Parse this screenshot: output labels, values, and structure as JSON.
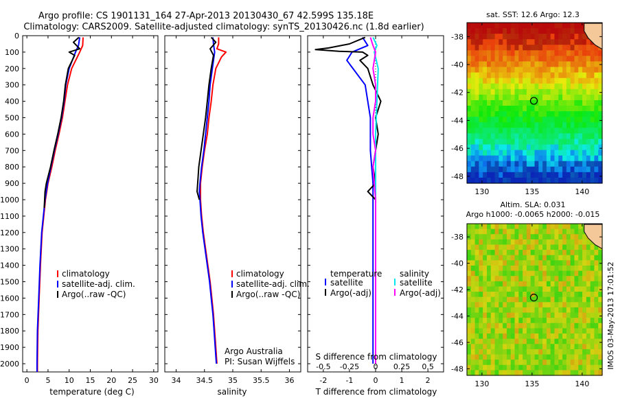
{
  "header": {
    "line1": "Argo profile: CS 1901131_164 27-Apr-2013 20130430_67 42.599S 135.18E",
    "line2": "Climatology: CARS2009. Satellite-adjusted climatology: synTS_20130426.nc (1.8d earlier)"
  },
  "colors": {
    "climatology": "#ff0000",
    "satellite": "#0000ff",
    "argo": "#000000",
    "sal_satellite": "#00e5ee",
    "sal_argo": "#ff00ff"
  },
  "chart_data": [
    {
      "type": "line",
      "xlabel": "temperature (deg C)",
      "ylabel": "",
      "xlim": [
        -1,
        31
      ],
      "ylim": [
        2050,
        0
      ],
      "xticks": [
        0,
        5,
        10,
        15,
        20,
        25,
        30
      ],
      "yticks": [
        0,
        100,
        200,
        300,
        400,
        500,
        600,
        700,
        800,
        900,
        1000,
        1100,
        1200,
        1300,
        1400,
        1500,
        1600,
        1700,
        1800,
        1900,
        2000
      ],
      "legend": [
        "climatology",
        "satellite-adj. clim.",
        "Argo(..raw -QC)"
      ],
      "series": [
        {
          "name": "climatology",
          "color": "climatology",
          "y": [
            10,
            60,
            100,
            200,
            300,
            400,
            500,
            600,
            700,
            800,
            900,
            1000,
            1200,
            1400,
            1600,
            1800,
            2000,
            2050
          ],
          "x": [
            13.3,
            13.2,
            12.5,
            10.6,
            9.6,
            9.0,
            8.4,
            7.6,
            6.7,
            5.9,
            5.0,
            4.4,
            3.6,
            3.2,
            2.9,
            2.6,
            2.5,
            2.5
          ]
        },
        {
          "name": "satellite-adj. clim.",
          "color": "satellite",
          "y": [
            10,
            60,
            100,
            200,
            300,
            400,
            500,
            600,
            700,
            800,
            900,
            1000,
            1200,
            1400,
            1600,
            1800,
            2000,
            2050
          ],
          "x": [
            12.5,
            12.2,
            11.5,
            10.0,
            9.2,
            8.8,
            8.2,
            7.4,
            6.5,
            5.7,
            4.9,
            4.3,
            3.5,
            3.1,
            2.8,
            2.5,
            2.4,
            2.4
          ]
        },
        {
          "name": "Argo(..raw -QC)",
          "color": "argo",
          "y": [
            10,
            40,
            80,
            100,
            120,
            200,
            300,
            400,
            500,
            600,
            700,
            800,
            900,
            950,
            1000,
            1050
          ],
          "x": [
            12.3,
            11.0,
            12.5,
            10.0,
            11.3,
            9.8,
            9.1,
            8.7,
            8.1,
            7.3,
            6.4,
            5.6,
            4.6,
            4.3,
            4.2,
            4.1
          ]
        }
      ]
    },
    {
      "type": "line",
      "xlabel": "salinity",
      "xlim": [
        33.8,
        36.2
      ],
      "ylim": [
        2050,
        0
      ],
      "xticks": [
        34,
        34.5,
        35,
        35.5,
        36
      ],
      "legend": [
        "climatology",
        "satellite-adj. clim.",
        "Argo(..raw -QC)"
      ],
      "annotation": [
        "Argo Australia",
        "PI: Susan Wijffels"
      ],
      "series": [
        {
          "name": "climatology",
          "color": "climatology",
          "y": [
            10,
            50,
            80,
            100,
            130,
            200,
            300,
            400,
            500,
            600,
            700,
            800,
            900,
            950,
            1000,
            1100,
            1200,
            1300,
            1400,
            1500,
            1600,
            1700,
            1800,
            1900,
            2000
          ],
          "x": [
            34.75,
            34.75,
            34.72,
            34.88,
            34.8,
            34.7,
            34.65,
            34.62,
            34.58,
            34.55,
            34.5,
            34.46,
            34.43,
            34.43,
            34.43,
            34.45,
            34.48,
            34.52,
            34.56,
            34.6,
            34.63,
            34.66,
            34.68,
            34.7,
            34.72
          ]
        },
        {
          "name": "satellite-adj. clim.",
          "color": "satellite",
          "y": [
            10,
            50,
            100,
            200,
            300,
            400,
            500,
            600,
            700,
            800,
            900,
            950,
            1000,
            1100,
            1200,
            1300,
            1400,
            1500,
            1600,
            1700,
            1800,
            1900,
            2000
          ],
          "x": [
            34.65,
            34.66,
            34.68,
            34.64,
            34.6,
            34.58,
            34.55,
            34.52,
            34.49,
            34.45,
            34.42,
            34.41,
            34.42,
            34.44,
            34.47,
            34.51,
            34.55,
            34.59,
            34.62,
            34.65,
            34.67,
            34.69,
            34.71
          ]
        },
        {
          "name": "Argo(..raw -QC)",
          "color": "argo",
          "y": [
            10,
            40,
            80,
            120,
            200,
            300,
            400,
            500,
            600,
            700,
            800,
            900,
            950,
            1000
          ],
          "x": [
            34.62,
            34.7,
            34.6,
            34.66,
            34.62,
            34.58,
            34.55,
            34.52,
            34.48,
            34.44,
            34.4,
            34.38,
            34.37,
            34.41
          ]
        }
      ]
    },
    {
      "type": "line",
      "xlabel": "T difference from climatology",
      "xlabel_top": "S difference from climatology",
      "xlim": [
        -2.6,
        2.6
      ],
      "ylim": [
        2050,
        0
      ],
      "xticks": [
        -2,
        -1,
        0,
        1,
        2
      ],
      "xtick_labels": [
        "-2",
        "-1",
        "0",
        "1",
        "2"
      ],
      "xticks_top": [
        -0.5,
        -0.25,
        0,
        0.25,
        0.5
      ],
      "legend_t": [
        "temperature",
        "satellite",
        "Argo(-adj)"
      ],
      "legend_s": [
        "salinity",
        "satellite",
        "Argo(-adj)"
      ],
      "series": [
        {
          "name": "satellite",
          "color": "satellite",
          "y": [
            10,
            60,
            100,
            150,
            300,
            500,
            700,
            900,
            1100,
            1300,
            1500,
            1700,
            1900,
            2000
          ],
          "x": [
            -0.5,
            -0.3,
            -0.9,
            -1.1,
            -0.4,
            -0.2,
            -0.2,
            -0.1,
            -0.1,
            -0.1,
            -0.1,
            -0.1,
            -0.1,
            -0.1
          ]
        },
        {
          "name": "Argo(-adj)",
          "color": "argo",
          "y": [
            10,
            50,
            75,
            85,
            95,
            100,
            120,
            150,
            200,
            300,
            400,
            500,
            600,
            700,
            800,
            900,
            950,
            1000,
            1200,
            1500,
            2000
          ],
          "x": [
            -0.4,
            -1.0,
            -1.8,
            -2.3,
            -1.4,
            -0.5,
            -0.3,
            -0.6,
            -0.3,
            -0.1,
            0.2,
            0.0,
            0.1,
            0.0,
            -0.1,
            0.0,
            -0.3,
            0.0,
            0.0,
            0.0,
            0.0
          ]
        },
        {
          "name": "satellite",
          "color": "sal_satellite",
          "y": [
            10,
            60,
            100,
            200,
            400,
            600,
            800,
            1000,
            1200,
            1500,
            1800,
            2000
          ],
          "x": [
            -0.1,
            0.05,
            -0.05,
            0.1,
            0.05,
            0.0,
            0.0,
            0.0,
            0.0,
            0.0,
            0.0,
            0.0
          ]
        },
        {
          "name": "Argo(-adj)",
          "color": "sal_argo",
          "y": [
            10,
            60,
            100,
            200,
            300,
            400,
            500,
            600,
            700,
            800,
            900,
            1000,
            1200,
            1500,
            2000
          ],
          "x": [
            -0.2,
            -0.1,
            0.0,
            -0.1,
            0.0,
            0.0,
            -0.1,
            -0.1,
            0.0,
            -0.1,
            -0.05,
            0.0,
            0.0,
            0.0,
            0.0
          ]
        }
      ]
    },
    {
      "type": "heatmap",
      "title": "sat. SST: 12.6 Argo: 12.3",
      "xlim": [
        128.5,
        142
      ],
      "ylim": [
        -48.5,
        -37
      ],
      "xticks": [
        130,
        135,
        140
      ],
      "yticks": [
        -38,
        -40,
        -42,
        -44,
        -46,
        -48
      ],
      "marker": {
        "x": 135.18,
        "y": -42.599
      }
    },
    {
      "type": "heatmap",
      "title": "Altim. SLA: 0.031",
      "subtitle": "Argo h1000: -0.0065 h2000: -0.015",
      "xlim": [
        128.5,
        142
      ],
      "ylim": [
        -48.5,
        -37
      ],
      "xticks": [
        130,
        135,
        140
      ],
      "yticks": [
        -38,
        -40,
        -42,
        -44,
        -46,
        -48
      ],
      "marker": {
        "x": 135.18,
        "y": -42.599
      }
    }
  ],
  "footer": {
    "stamp": "IMOS 03-May-2013 17:01:52"
  }
}
